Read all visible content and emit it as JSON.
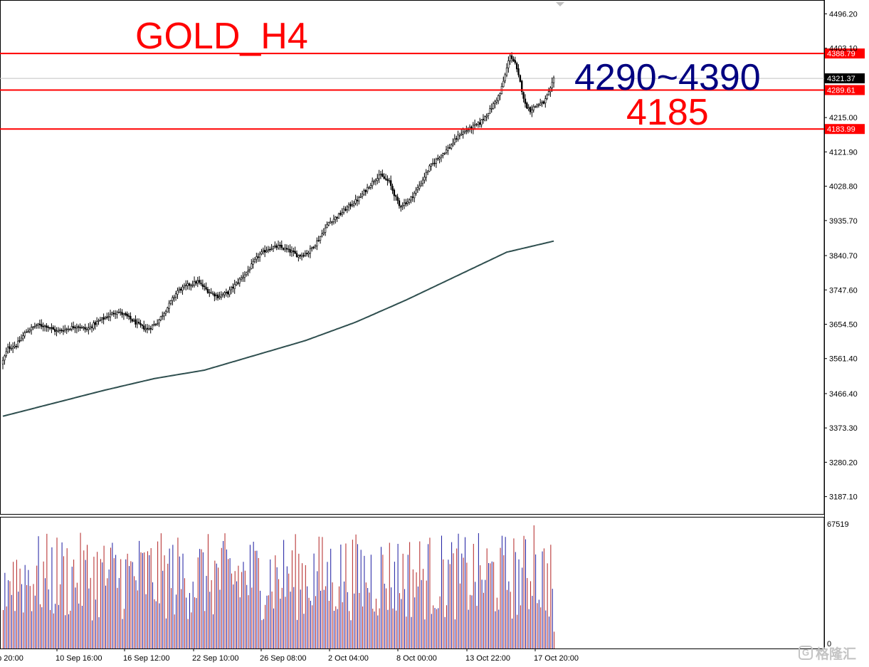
{
  "chart_data": {
    "type": "candlestick",
    "symbol_annotation": "GOLD_H4",
    "price_axis": {
      "min": 3140,
      "max": 4530,
      "ticks": [
        "4496.20",
        "4403.10",
        "4215.00",
        "4121.90",
        "4028.80",
        "3935.70",
        "3840.70",
        "3747.60",
        "3654.50",
        "3561.40",
        "3466.40",
        "3373.30",
        "3280.20",
        "3187.10"
      ]
    },
    "current_price": "4321.37",
    "levels": [
      {
        "value": 4388.79,
        "label": "4388.79",
        "color": "#ff0000"
      },
      {
        "value": 4289.61,
        "label": "4289.61",
        "color": "#ff0000"
      },
      {
        "value": 4183.99,
        "label": "4183.99",
        "color": "#ff0000"
      }
    ],
    "annotations": [
      {
        "text": "4290~4390",
        "color": "#000080"
      },
      {
        "text": "4185",
        "color": "#ff0000"
      }
    ],
    "time_axis": [
      "ep 20:00",
      "10 Sep 16:00",
      "16 Sep 12:00",
      "22 Sep 10:00",
      "26 Sep 08:00",
      "2 Oct 04:00",
      "8 Oct 00:00",
      "13 Oct 22:00",
      "17 Oct 20:00"
    ],
    "volume_axis": {
      "max_label": "67519",
      "min_label": "0",
      "max": 67519
    },
    "close_anchors": [
      [
        0,
        3555
      ],
      [
        3,
        3590
      ],
      [
        8,
        3598
      ],
      [
        14,
        3635
      ],
      [
        20,
        3652
      ],
      [
        26,
        3650
      ],
      [
        32,
        3635
      ],
      [
        38,
        3642
      ],
      [
        44,
        3650
      ],
      [
        50,
        3640
      ],
      [
        56,
        3660
      ],
      [
        62,
        3675
      ],
      [
        68,
        3690
      ],
      [
        74,
        3675
      ],
      [
        80,
        3655
      ],
      [
        86,
        3640
      ],
      [
        92,
        3660
      ],
      [
        98,
        3700
      ],
      [
        104,
        3745
      ],
      [
        110,
        3760
      ],
      [
        116,
        3770
      ],
      [
        122,
        3745
      ],
      [
        128,
        3730
      ],
      [
        134,
        3740
      ],
      [
        140,
        3770
      ],
      [
        146,
        3800
      ],
      [
        152,
        3840
      ],
      [
        158,
        3860
      ],
      [
        164,
        3865
      ],
      [
        170,
        3855
      ],
      [
        176,
        3840
      ],
      [
        182,
        3850
      ],
      [
        188,
        3885
      ],
      [
        194,
        3930
      ],
      [
        200,
        3950
      ],
      [
        206,
        3975
      ],
      [
        212,
        3995
      ],
      [
        218,
        4030
      ],
      [
        224,
        4060
      ],
      [
        230,
        4040
      ],
      [
        236,
        3975
      ],
      [
        242,
        3990
      ],
      [
        248,
        4030
      ],
      [
        254,
        4080
      ],
      [
        260,
        4110
      ],
      [
        266,
        4135
      ],
      [
        272,
        4170
      ],
      [
        278,
        4185
      ],
      [
        284,
        4200
      ],
      [
        290,
        4235
      ],
      [
        296,
        4280
      ],
      [
        299,
        4330
      ],
      [
        302,
        4385
      ],
      [
        305,
        4360
      ],
      [
        308,
        4310
      ],
      [
        311,
        4250
      ],
      [
        314,
        4235
      ],
      [
        318,
        4250
      ],
      [
        322,
        4255
      ],
      [
        326,
        4290
      ],
      [
        328,
        4321
      ]
    ],
    "ma_anchors": [
      [
        0,
        3405
      ],
      [
        30,
        3440
      ],
      [
        60,
        3475
      ],
      [
        90,
        3507
      ],
      [
        120,
        3530
      ],
      [
        150,
        3570
      ],
      [
        180,
        3610
      ],
      [
        210,
        3660
      ],
      [
        240,
        3720
      ],
      [
        270,
        3785
      ],
      [
        300,
        3850
      ],
      [
        328,
        3880
      ]
    ],
    "volume_range": [
      15000,
      62000
    ]
  },
  "watermark": {
    "text": "格隆汇"
  }
}
